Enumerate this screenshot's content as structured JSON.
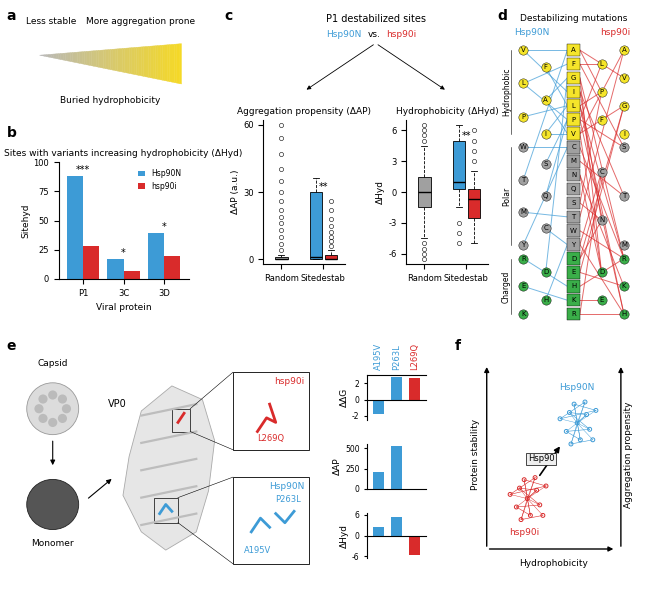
{
  "chart_data": [
    {
      "type": "bar",
      "title": "Sites with variants increasing hydrophobicity (ΔHyd)",
      "x_label": "Viral protein",
      "y_label": "Sitehyd",
      "categories": [
        "P1",
        "3C",
        "3D"
      ],
      "series": [
        {
          "name": "Hsp90N",
          "color": "#3d9bd6",
          "values": [
            88,
            17,
            39
          ]
        },
        {
          "name": "hsp90i",
          "color": "#d92b2b",
          "values": [
            28,
            7,
            20
          ]
        }
      ],
      "ylim": [
        0,
        100
      ],
      "yticks": [
        0,
        25,
        50,
        75,
        100
      ],
      "legend": "upper right",
      "annotations": [
        "***",
        "*",
        "*"
      ]
    },
    {
      "type": "box",
      "title": "Aggregation propensity (ΔAP)",
      "y_label": "ΔAP (a.u.)",
      "categories": [
        "Random",
        "Sitedestab"
      ],
      "boxes": [
        {
          "category": "Random",
          "color": "#a0a0a0",
          "whislo": 0,
          "q1": 0,
          "median": 0,
          "q3": 1,
          "whishi": 2,
          "fliers": [
            4,
            7,
            10,
            13,
            16,
            19,
            22,
            26,
            30,
            35,
            40,
            47,
            54,
            60
          ]
        },
        {
          "category": "Sitedestab",
          "color": "#3d9bd6",
          "whislo": 0,
          "q1": 0,
          "median": 1,
          "q3": 30,
          "whishi": 36,
          "fliers": []
        },
        {
          "category": "Sitedestab",
          "color": "#d92b2b",
          "whislo": 0,
          "q1": 0,
          "median": 0,
          "q3": 2,
          "whishi": 4,
          "fliers": [
            6,
            8,
            10,
            12,
            15,
            18,
            22,
            26
          ]
        }
      ],
      "ylim": [
        -2,
        62
      ],
      "yticks": [
        0,
        30,
        60
      ],
      "annotations": [
        {
          "category": "Sitedestab",
          "text": "**"
        }
      ]
    },
    {
      "type": "box",
      "title": "Hydrophobicity (ΔHyd)",
      "y_label": "ΔHyd",
      "categories": [
        "Random",
        "Sitedestab"
      ],
      "boxes": [
        {
          "category": "Random",
          "color": "#a0a0a0",
          "whislo": -4.5,
          "q1": -1.5,
          "median": 0,
          "q3": 1.5,
          "whishi": 4.5,
          "fliers": [
            -6.5,
            -6,
            -5.5,
            -5,
            5,
            5.5,
            6,
            6.5
          ]
        },
        {
          "category": "Sitedestab",
          "color": "#3d9bd6",
          "whislo": -1.5,
          "q1": 0.3,
          "median": 1,
          "q3": 5,
          "whishi": 6.5,
          "fliers": [
            -3,
            -4,
            -5
          ]
        },
        {
          "category": "Sitedestab",
          "color": "#d92b2b",
          "whislo": -5,
          "q1": -2.5,
          "median": -0.7,
          "q3": 0.3,
          "whishi": 2,
          "fliers": [
            3,
            4,
            5,
            6
          ]
        }
      ],
      "ylim": [
        -7,
        7
      ],
      "yticks": [
        -6,
        -3,
        0,
        3,
        6
      ],
      "annotations": [
        {
          "category": "Sitedestab",
          "text": "**"
        }
      ]
    },
    {
      "type": "bar",
      "y_label": "ΔΔG",
      "categories": [
        "A195V",
        "P263L",
        "L269Q"
      ],
      "values": [
        -1.8,
        2.8,
        2.6
      ],
      "colors": [
        "#3d9bd6",
        "#3d9bd6",
        "#d92b2b"
      ],
      "ylim": [
        -2.5,
        3
      ],
      "yticks": [
        -2,
        0,
        2
      ]
    },
    {
      "type": "bar",
      "y_label": "ΔAP",
      "categories": [
        "A195V",
        "P263L",
        "L269Q"
      ],
      "values": [
        210,
        520,
        0
      ],
      "colors": [
        "#3d9bd6",
        "#3d9bd6",
        "#d92b2b"
      ],
      "ylim": [
        0,
        550
      ],
      "yticks": [
        0,
        250,
        500
      ],
      "tick_labels": "y"
    },
    {
      "type": "bar",
      "y_label": "ΔHyd",
      "categories": [
        "A195V",
        "P263L",
        "L269Q"
      ],
      "values": [
        2.5,
        5.3,
        -5.5
      ],
      "colors": [
        "#3d9bd6",
        "#3d9bd6",
        "#d92b2b"
      ],
      "ylim": [
        -6.5,
        6.5
      ],
      "yticks": [
        -6,
        0,
        6
      ],
      "tick_labels": "y"
    }
  ],
  "diagram": {
    "panel_letters": [
      "a",
      "b",
      "c",
      "d",
      "e",
      "f"
    ],
    "panel_a": {
      "left": "Less stable",
      "right": "More aggregation prone",
      "bottom": "Buried hydrophobicity"
    },
    "panel_c": {
      "title": "P1 destabilized sites",
      "compare": [
        {
          "text": "Hsp90N",
          "color": "#3d9bd6"
        },
        {
          "text": "vs.",
          "color": "#000000"
        },
        {
          "text": "hsp90i",
          "color": "#d92b2b"
        }
      ]
    },
    "panel_d": {
      "title": "Destabilizing mutations",
      "left_label": "Hsp90N",
      "left_color": "#3d9bd6",
      "right_label": "hsp90i",
      "right_color": "#d92b2b",
      "groups": [
        {
          "name": "Hydrophobic",
          "color": "#f5e52a",
          "residues": [
            "A",
            "F",
            "G",
            "I",
            "L",
            "P",
            "V"
          ],
          "left": [
            "V",
            "F",
            "L",
            "A",
            "P",
            "I"
          ],
          "right": [
            "A",
            "L",
            "V",
            "P",
            "G",
            "F",
            "I"
          ]
        },
        {
          "name": "Polar",
          "color": "#a0a0a0",
          "residues": [
            "C",
            "M",
            "N",
            "Q",
            "S",
            "T",
            "W",
            "Y"
          ],
          "left": [
            "W",
            "S",
            "T",
            "Q",
            "M",
            "C",
            "Y"
          ],
          "right": [
            "S",
            "C",
            "T",
            "N",
            "M"
          ]
        },
        {
          "name": "Charged",
          "color": "#3aae49",
          "residues": [
            "D",
            "E",
            "H",
            "K",
            "R"
          ],
          "left": [
            "R",
            "D",
            "E",
            "H",
            "K"
          ],
          "right": [
            "R",
            "D",
            "K",
            "E",
            "H"
          ]
        }
      ],
      "left_edges": [
        [
          "V",
          "A"
        ],
        [
          "V",
          "I"
        ],
        [
          "F",
          "L"
        ],
        [
          "L",
          "F"
        ],
        [
          "L",
          "P"
        ],
        [
          "A",
          "V"
        ],
        [
          "A",
          "G"
        ],
        [
          "P",
          "L"
        ],
        [
          "I",
          "V"
        ],
        [
          "I",
          "L"
        ],
        [
          "S",
          "P"
        ],
        [
          "T",
          "A"
        ],
        [
          "W",
          "C"
        ],
        [
          "M",
          "T"
        ],
        [
          "Q",
          "P"
        ],
        [
          "C",
          "Y"
        ],
        [
          "Y",
          "C"
        ],
        [
          "R",
          "H"
        ],
        [
          "D",
          "G"
        ],
        [
          "E",
          "K"
        ],
        [
          "H",
          "Y"
        ]
      ],
      "right_edges": [
        [
          "A",
          "V"
        ],
        [
          "A",
          "P"
        ],
        [
          "F",
          "L"
        ],
        [
          "F",
          "S"
        ],
        [
          "G",
          "D"
        ],
        [
          "G",
          "R"
        ],
        [
          "I",
          "T"
        ],
        [
          "I",
          "N"
        ],
        [
          "L",
          "P"
        ],
        [
          "L",
          "R"
        ],
        [
          "L",
          "H"
        ],
        [
          "P",
          "L"
        ],
        [
          "P",
          "S"
        ],
        [
          "P",
          "H"
        ],
        [
          "V",
          "A"
        ],
        [
          "V",
          "D"
        ],
        [
          "V",
          "G"
        ],
        [
          "C",
          "R"
        ],
        [
          "M",
          "T"
        ],
        [
          "N",
          "D"
        ],
        [
          "N",
          "K"
        ],
        [
          "S",
          "P"
        ],
        [
          "S",
          "N"
        ],
        [
          "T",
          "A"
        ],
        [
          "W",
          "R"
        ],
        [
          "Y",
          "H"
        ],
        [
          "Y",
          "C"
        ],
        [
          "D",
          "G"
        ],
        [
          "D",
          "N"
        ],
        [
          "E",
          "K"
        ],
        [
          "E",
          "G"
        ],
        [
          "H",
          "R"
        ],
        [
          "K",
          "E"
        ],
        [
          "R",
          "H"
        ],
        [
          "R",
          "C"
        ]
      ]
    },
    "panel_e": {
      "capsid": "Capsid",
      "monomer": "Monomer",
      "protein": "VP0",
      "insets": [
        {
          "header": "hsp90i",
          "color": "#d92b2b",
          "mutations": [
            "L269Q"
          ]
        },
        {
          "header": "Hsp90N",
          "color": "#3d9bd6",
          "mutations": [
            "A195V",
            "P263L"
          ]
        }
      ]
    },
    "panel_f": {
      "x_label": "Hydrophobicity",
      "y_label": "Protein stability",
      "y2_label": "Aggregation propensity",
      "arrow": "Hsp90",
      "clusters": [
        {
          "name": "Hsp90N",
          "color": "#3d9bd6"
        },
        {
          "name": "hsp90i",
          "color": "#d92b2b"
        }
      ]
    }
  }
}
